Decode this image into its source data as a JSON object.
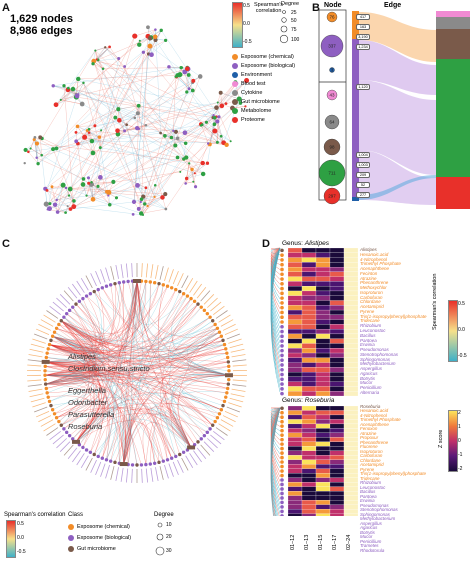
{
  "panels": {
    "a": {
      "letter": "A",
      "nodes_text": "1,629 nodes",
      "edges_text": "8,986  edges",
      "colorbar_title_line1": "Spearman's",
      "colorbar_title_line2": "correlation",
      "colorbar_ticks": [
        "0.5",
        "0.0",
        "-0.5"
      ],
      "degree_title": "Degree",
      "degree_values": [
        "25",
        "50",
        "75",
        "100"
      ],
      "legend": [
        {
          "label": "Exposome (chemical)",
          "color": "#f28c28"
        },
        {
          "label": "Exposome (biological)",
          "color": "#8e5fc1"
        },
        {
          "label": "Environment",
          "color": "#1f5fa8"
        },
        {
          "label": "Blood test",
          "color": "#f08ad3"
        },
        {
          "label": "Cytokine",
          "color": "#8a8a8a"
        },
        {
          "label": "Gut microbiome",
          "color": "#7a5a4a"
        },
        {
          "label": "Metabolome",
          "color": "#2ea043"
        },
        {
          "label": "Proteome",
          "color": "#e8302a"
        }
      ]
    },
    "b": {
      "letter": "B",
      "node_header": "Node",
      "edge_header": "Edge",
      "bubbles": [
        {
          "value": "76",
          "color": "#f28c28"
        },
        {
          "value": "337",
          "color": "#8e5fc1"
        },
        {
          "value": "3",
          "color": "#1f5fa8"
        },
        {
          "value": "43",
          "color": "#f08ad3"
        },
        {
          "value": "64",
          "color": "#8a8a8a"
        },
        {
          "value": "98",
          "color": "#7a5a4a"
        },
        {
          "value": "711",
          "color": "#2ea043"
        },
        {
          "value": "297",
          "color": "#e8302a"
        }
      ],
      "left_bar_labels": [
        "Exposome 76",
        "Exposome (biological) 337",
        "Environment 03"
      ],
      "right_bar_labels": [
        "Blood test 43",
        "Cytokine 64",
        "Gut microbiome 98",
        "Metabolome 711",
        "Proteome 297"
      ],
      "flow_labels_top": [
        "417",
        "163",
        "3,190",
        "1,234"
      ],
      "flow_labels_mid": [
        "1,120"
      ],
      "flow_labels_low": [
        "1,004",
        "1,003",
        "209",
        "52",
        "277"
      ]
    },
    "c": {
      "letter": "C",
      "highlights": [
        "Alistipes",
        "Clostridium.sensu.stricto",
        "Eggerthella",
        "Odoribacter",
        "Parasutterella",
        "Roseburia"
      ],
      "colorbar_title": "Spearman's correlation",
      "colorbar_ticks": [
        "0.5",
        "0.0",
        "-0.5"
      ],
      "class_title": "Class",
      "class_legend": [
        {
          "label": "Exposome (chemical)",
          "color": "#f28c28"
        },
        {
          "label": "Exposome (biological)",
          "color": "#8e5fc1"
        },
        {
          "label": "Gut microbiome",
          "color": "#7a5a4a"
        }
      ],
      "degree_title": "Degree",
      "degree_values": [
        "10",
        "20",
        "30"
      ]
    },
    "d": {
      "letter": "D",
      "genus1_prefix": "Genus: ",
      "genus1_name": "Alistipes",
      "genus2_prefix": "Genus: ",
      "genus2_name": "Roseburia",
      "x_labels": [
        "01–12",
        "01–13",
        "01–15",
        "01–17",
        "02–24"
      ],
      "colorbar1_title": "Spearman's correlation",
      "colorbar1_ticks": [
        "0.5",
        "0.0",
        "-0.5"
      ],
      "colorbar2_title": "Z score",
      "colorbar2_ticks": [
        "2",
        "1",
        "0",
        "-1",
        "-2"
      ],
      "list1": [
        {
          "label": "Alistipes",
          "color": "#7a5a4a"
        },
        {
          "label": "Hexanoic.acid",
          "color": "#f28c28"
        },
        {
          "label": "4-Nitrophenol",
          "color": "#f28c28"
        },
        {
          "label": "Trimethyl Phosphate",
          "color": "#f28c28"
        },
        {
          "label": "Acenaphthene",
          "color": "#f28c28"
        },
        {
          "label": "Fecinton",
          "color": "#f28c28"
        },
        {
          "label": "Atrazine",
          "color": "#f28c28"
        },
        {
          "label": "Phenanthrene",
          "color": "#f28c28"
        },
        {
          "label": "Methoxychlor",
          "color": "#f28c28"
        },
        {
          "label": "Isoproturon",
          "color": "#f28c28"
        },
        {
          "label": "Carbofuran",
          "color": "#f28c28"
        },
        {
          "label": "Chlordane",
          "color": "#f28c28"
        },
        {
          "label": "Acetamiprid",
          "color": "#f28c28"
        },
        {
          "label": "Pyrene",
          "color": "#f28c28"
        },
        {
          "label": "Tris(1-isopropylphenyl)phosphate",
          "color": "#f28c28"
        },
        {
          "label": "Tridecane",
          "color": "#f28c28"
        },
        {
          "label": "Rhizobium",
          "color": "#8e5fc1"
        },
        {
          "label": "Leuconostoc",
          "color": "#8e5fc1"
        },
        {
          "label": "Bacillus",
          "color": "#8e5fc1"
        },
        {
          "label": "Pantoea",
          "color": "#8e5fc1"
        },
        {
          "label": "Erwinia",
          "color": "#8e5fc1"
        },
        {
          "label": "Pseudomonas",
          "color": "#8e5fc1"
        },
        {
          "label": "Stenotrophomonas",
          "color": "#8e5fc1"
        },
        {
          "label": "Sphingomonas",
          "color": "#8e5fc1"
        },
        {
          "label": "Methylobacterium",
          "color": "#8e5fc1"
        },
        {
          "label": "Aspergillus",
          "color": "#8e5fc1"
        },
        {
          "label": "Agaricus",
          "color": "#8e5fc1"
        },
        {
          "label": "Botrytis",
          "color": "#8e5fc1"
        },
        {
          "label": "Mucor",
          "color": "#8e5fc1"
        },
        {
          "label": "Penicillium",
          "color": "#8e5fc1"
        },
        {
          "label": "Alternaria",
          "color": "#8e5fc1"
        }
      ],
      "list2": [
        {
          "label": "Roseburia",
          "color": "#7a5a4a"
        },
        {
          "label": "Hexanoic.acid",
          "color": "#f28c28"
        },
        {
          "label": "4-Nitrophenol",
          "color": "#f28c28"
        },
        {
          "label": "Trimethyl Phosphate",
          "color": "#f28c28"
        },
        {
          "label": "Acenaphthene",
          "color": "#f28c28"
        },
        {
          "label": "Fenoxon",
          "color": "#f28c28"
        },
        {
          "label": "Atrazine",
          "color": "#f28c28"
        },
        {
          "label": "Propoxur",
          "color": "#f28c28"
        },
        {
          "label": "Phenanthrene",
          "color": "#f28c28"
        },
        {
          "label": "Fluorene",
          "color": "#f28c28"
        },
        {
          "label": "Isoproturon",
          "color": "#f28c28"
        },
        {
          "label": "Carbofuran",
          "color": "#f28c28"
        },
        {
          "label": "Chlordane",
          "color": "#f28c28"
        },
        {
          "label": "Acetamiprid",
          "color": "#f28c28"
        },
        {
          "label": "Pyrene",
          "color": "#f28c28"
        },
        {
          "label": "Tris(1-isopropylphenyl)phosphate",
          "color": "#f28c28"
        },
        {
          "label": "Tridecane",
          "color": "#f28c28"
        },
        {
          "label": "Rhizobium",
          "color": "#8e5fc1"
        },
        {
          "label": "Leuconostoc",
          "color": "#8e5fc1"
        },
        {
          "label": "Bacillus",
          "color": "#8e5fc1"
        },
        {
          "label": "Pantoea",
          "color": "#8e5fc1"
        },
        {
          "label": "Erwinia",
          "color": "#8e5fc1"
        },
        {
          "label": "Pseudomonas",
          "color": "#8e5fc1"
        },
        {
          "label": "Stenotrophomonas",
          "color": "#8e5fc1"
        },
        {
          "label": "Sphingomonas",
          "color": "#8e5fc1"
        },
        {
          "label": "Methylobacterium",
          "color": "#8e5fc1"
        },
        {
          "label": "Aspergillus",
          "color": "#8e5fc1"
        },
        {
          "label": "Agaricus",
          "color": "#8e5fc1"
        },
        {
          "label": "Botrytis",
          "color": "#8e5fc1"
        },
        {
          "label": "Mucor",
          "color": "#8e5fc1"
        },
        {
          "label": "Penicillium",
          "color": "#8e5fc1"
        },
        {
          "label": "Trametes",
          "color": "#8e5fc1"
        },
        {
          "label": "Rhodotorula",
          "color": "#8e5fc1"
        }
      ]
    }
  }
}
